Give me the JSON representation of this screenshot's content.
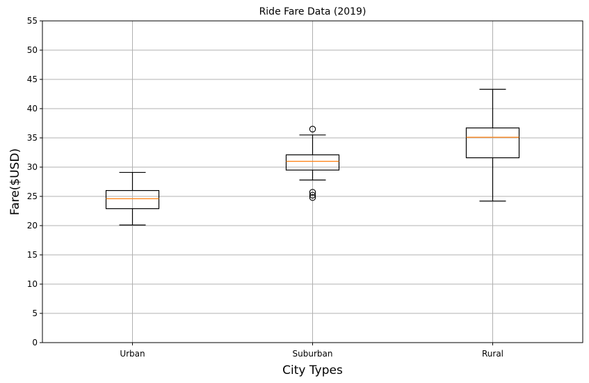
{
  "chart_data": {
    "type": "box",
    "title": "Ride Fare Data (2019)",
    "xlabel": "City Types",
    "ylabel": "Fare($USD)",
    "ylim": [
      0,
      55
    ],
    "yticks": [
      0,
      5,
      10,
      15,
      20,
      25,
      30,
      35,
      40,
      45,
      50,
      55
    ],
    "grid": true,
    "categories": [
      "Urban",
      "Suburban",
      "Rural"
    ],
    "boxes": [
      {
        "category": "Urban",
        "whisker_low": 20.1,
        "q1": 22.9,
        "median": 24.6,
        "q3": 26.0,
        "whisker_high": 29.1,
        "outliers": []
      },
      {
        "category": "Suburban",
        "whisker_low": 27.8,
        "q1": 29.5,
        "median": 31.0,
        "q3": 32.1,
        "whisker_high": 35.5,
        "outliers": [
          36.5,
          25.7,
          25.2,
          24.8
        ]
      },
      {
        "category": "Rural",
        "whisker_low": 24.2,
        "q1": 31.6,
        "median": 35.1,
        "q3": 36.7,
        "whisker_high": 43.3,
        "outliers": []
      }
    ],
    "colors": {
      "box": "#000000",
      "median": "#ff7f0e",
      "grid": "#b0b0b0"
    }
  }
}
